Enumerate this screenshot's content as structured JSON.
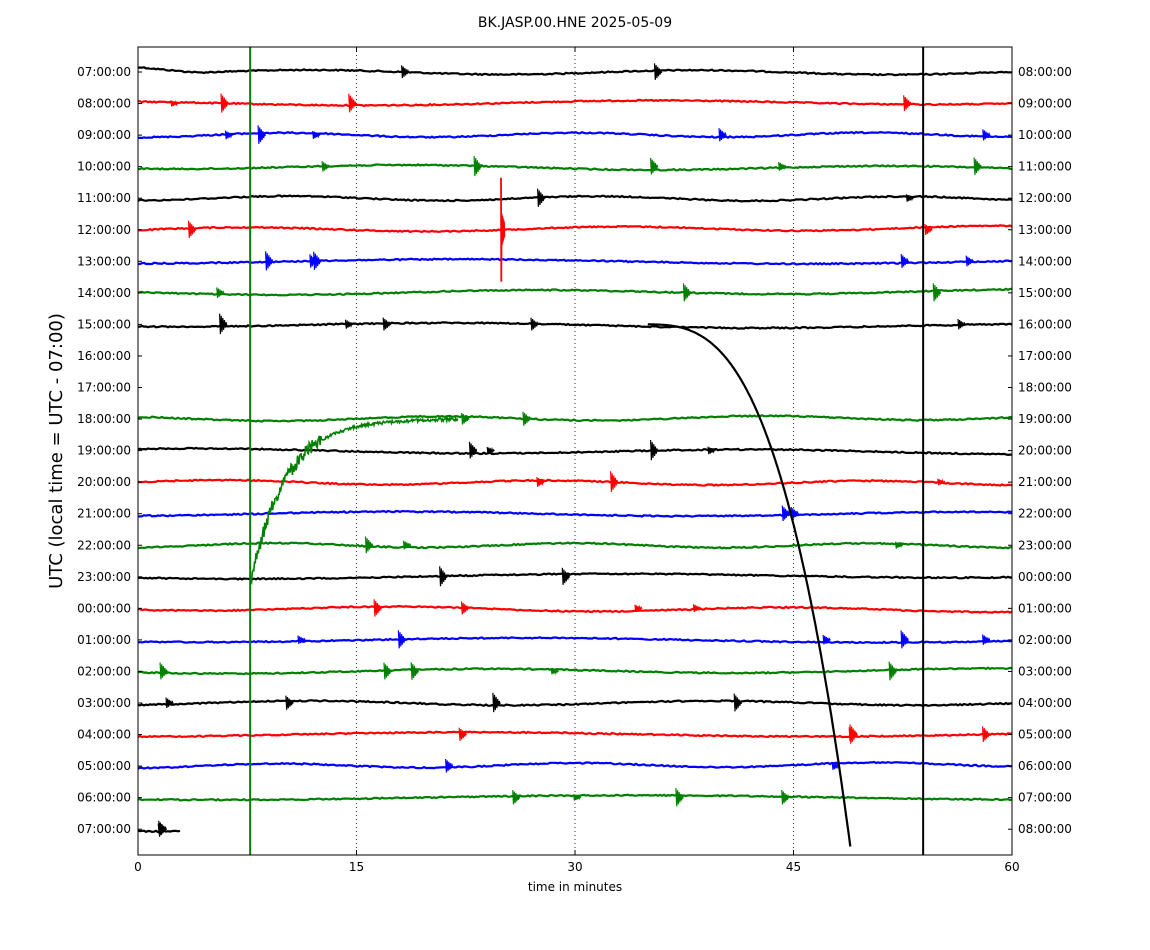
{
  "chart_data": {
    "type": "line",
    "title": "BK.JASP.00.HNE 2025-05-09",
    "xlabel": "time in minutes",
    "ylabel": "UTC (local time = UTC - 07:00)",
    "xlim": [
      0,
      60
    ],
    "x_ticks": [
      0,
      15,
      30,
      45,
      60
    ],
    "grid": "vertical dotted lines at 15, 30, 45",
    "left_labels": [
      "07:00:00",
      "08:00:00",
      "09:00:00",
      "10:00:00",
      "11:00:00",
      "12:00:00",
      "13:00:00",
      "14:00:00",
      "15:00:00",
      "16:00:00",
      "17:00:00",
      "18:00:00",
      "19:00:00",
      "20:00:00",
      "21:00:00",
      "22:00:00",
      "23:00:00",
      "00:00:00",
      "01:00:00",
      "02:00:00",
      "03:00:00",
      "04:00:00",
      "05:00:00",
      "06:00:00",
      "07:00:00"
    ],
    "right_labels": [
      "08:00:00",
      "09:00:00",
      "10:00:00",
      "11:00:00",
      "12:00:00",
      "13:00:00",
      "14:00:00",
      "15:00:00",
      "16:00:00",
      "17:00:00",
      "18:00:00",
      "19:00:00",
      "20:00:00",
      "21:00:00",
      "22:00:00",
      "23:00:00",
      "00:00:00",
      "01:00:00",
      "02:00:00",
      "03:00:00",
      "04:00:00",
      "05:00:00",
      "06:00:00",
      "07:00:00",
      "08:00:00"
    ],
    "trace_colors": [
      "#000000",
      "#ff0000",
      "#0000ff",
      "#008000"
    ],
    "vertical_markers": [
      {
        "x": 7.7,
        "color": "#008000"
      },
      {
        "x": 53.9,
        "color": "#000000"
      }
    ]
  }
}
